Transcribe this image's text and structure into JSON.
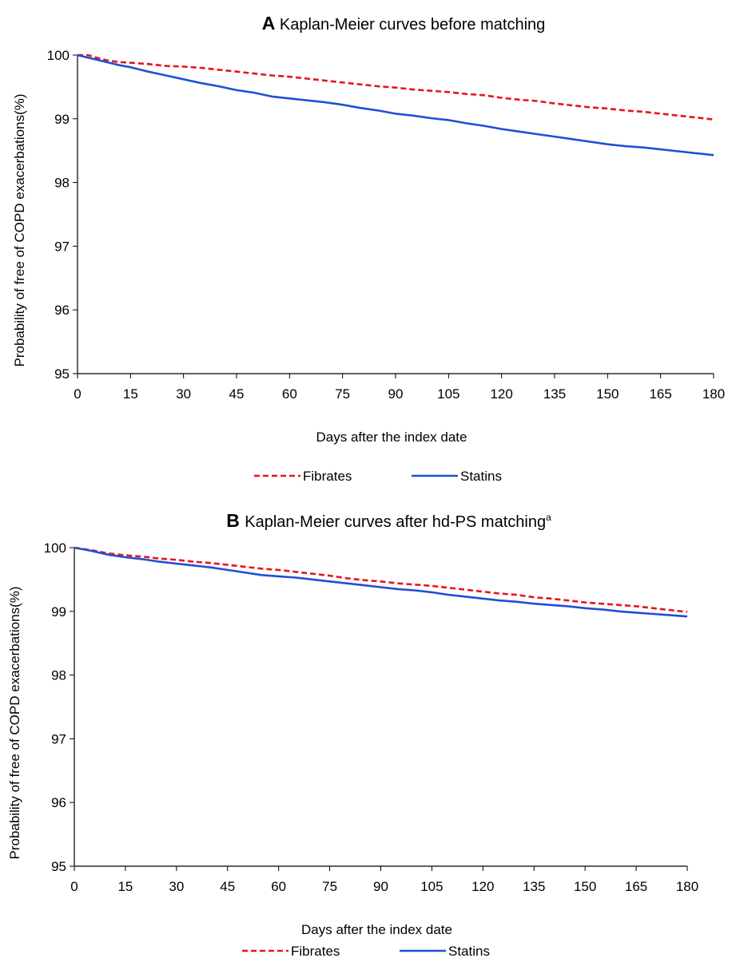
{
  "chart_data": [
    {
      "type": "line",
      "panel_letter": "A",
      "title": "Kaplan-Meier curves before matching",
      "title_superscript": "",
      "xlabel": "Days after the index date",
      "ylabel": "Probability of free of COPD exacerbations(%)",
      "xlim": [
        0,
        180
      ],
      "ylim": [
        95,
        100
      ],
      "xticks": [
        0,
        15,
        30,
        45,
        60,
        75,
        90,
        105,
        120,
        135,
        150,
        165,
        180
      ],
      "yticks": [
        95,
        96,
        97,
        98,
        99,
        100
      ],
      "grid": false,
      "legend_position": "bottom-center",
      "series": [
        {
          "name": "Fibrates",
          "color": "#e8141c",
          "dash": "dashed",
          "x": [
            0,
            3,
            6,
            9,
            12,
            15,
            20,
            25,
            30,
            35,
            40,
            45,
            50,
            55,
            60,
            65,
            70,
            75,
            80,
            85,
            90,
            95,
            100,
            105,
            110,
            115,
            120,
            125,
            130,
            135,
            140,
            145,
            150,
            155,
            160,
            165,
            170,
            175,
            180
          ],
          "y": [
            100,
            100,
            99.95,
            99.91,
            99.89,
            99.88,
            99.86,
            99.83,
            99.82,
            99.8,
            99.77,
            99.74,
            99.71,
            99.68,
            99.66,
            99.63,
            99.6,
            99.57,
            99.54,
            99.51,
            99.49,
            99.46,
            99.44,
            99.42,
            99.39,
            99.37,
            99.33,
            99.3,
            99.28,
            99.24,
            99.21,
            99.18,
            99.16,
            99.13,
            99.11,
            99.08,
            99.05,
            99.02,
            98.99
          ]
        },
        {
          "name": "Statins",
          "color": "#1f4fd6",
          "dash": "solid",
          "x": [
            0,
            3,
            6,
            9,
            12,
            15,
            20,
            25,
            30,
            35,
            40,
            45,
            50,
            55,
            60,
            65,
            70,
            75,
            80,
            85,
            90,
            95,
            100,
            105,
            110,
            115,
            120,
            125,
            130,
            135,
            140,
            145,
            150,
            155,
            160,
            165,
            170,
            175,
            180
          ],
          "y": [
            100,
            99.96,
            99.92,
            99.88,
            99.84,
            99.81,
            99.74,
            99.68,
            99.62,
            99.56,
            99.51,
            99.45,
            99.41,
            99.35,
            99.32,
            99.29,
            99.26,
            99.22,
            99.17,
            99.13,
            99.08,
            99.05,
            99.01,
            98.98,
            98.93,
            98.89,
            98.84,
            98.8,
            98.76,
            98.72,
            98.68,
            98.64,
            98.6,
            98.57,
            98.55,
            98.52,
            98.49,
            98.46,
            98.43
          ]
        }
      ]
    },
    {
      "type": "line",
      "panel_letter": "B",
      "title": "Kaplan-Meier curves after hd-PS matching",
      "title_superscript": "a",
      "xlabel": "Days after the index date",
      "ylabel": "Probability of free of COPD exacerbations(%)",
      "xlim": [
        0,
        180
      ],
      "ylim": [
        95,
        100
      ],
      "xticks": [
        0,
        15,
        30,
        45,
        60,
        75,
        90,
        105,
        120,
        135,
        150,
        165,
        180
      ],
      "yticks": [
        95,
        96,
        97,
        98,
        99,
        100
      ],
      "grid": false,
      "legend_position": "bottom-center",
      "series": [
        {
          "name": "Fibrates",
          "color": "#e8141c",
          "dash": "dashed",
          "x": [
            0,
            5,
            10,
            15,
            20,
            25,
            30,
            35,
            40,
            45,
            50,
            55,
            60,
            65,
            70,
            75,
            80,
            85,
            90,
            95,
            100,
            105,
            110,
            115,
            120,
            125,
            130,
            135,
            140,
            145,
            150,
            155,
            160,
            165,
            170,
            175,
            180
          ],
          "y": [
            100,
            99.96,
            99.91,
            99.88,
            99.86,
            99.83,
            99.81,
            99.78,
            99.76,
            99.73,
            99.7,
            99.67,
            99.65,
            99.62,
            99.59,
            99.56,
            99.52,
            99.49,
            99.47,
            99.44,
            99.42,
            99.4,
            99.37,
            99.34,
            99.31,
            99.28,
            99.26,
            99.22,
            99.2,
            99.17,
            99.14,
            99.12,
            99.1,
            99.08,
            99.05,
            99.02,
            98.99
          ]
        },
        {
          "name": "Statins",
          "color": "#1f4fd6",
          "dash": "solid",
          "x": [
            0,
            5,
            10,
            15,
            20,
            25,
            30,
            35,
            40,
            45,
            50,
            55,
            60,
            65,
            70,
            75,
            80,
            85,
            90,
            95,
            100,
            105,
            110,
            115,
            120,
            125,
            130,
            135,
            140,
            145,
            150,
            155,
            160,
            165,
            170,
            175,
            180
          ],
          "y": [
            100,
            99.95,
            99.89,
            99.85,
            99.82,
            99.78,
            99.75,
            99.72,
            99.69,
            99.65,
            99.61,
            99.57,
            99.55,
            99.53,
            99.5,
            99.47,
            99.44,
            99.41,
            99.38,
            99.35,
            99.33,
            99.3,
            99.26,
            99.23,
            99.2,
            99.17,
            99.15,
            99.12,
            99.1,
            99.08,
            99.05,
            99.03,
            99.0,
            98.98,
            98.96,
            98.94,
            98.92
          ]
        }
      ]
    }
  ]
}
